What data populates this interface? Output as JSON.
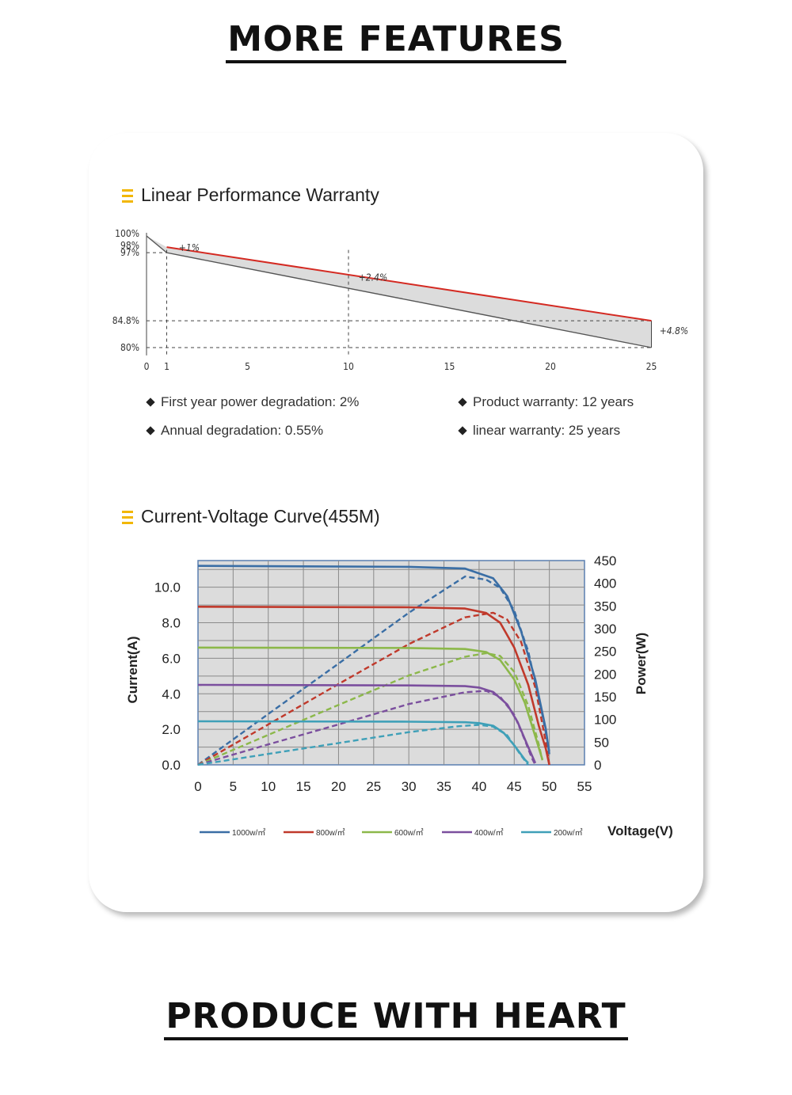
{
  "headings": {
    "top": "MORE FEATURES",
    "bottom": "PRODUCE WITH HEART"
  },
  "warranty": {
    "title": "Linear Performance Warranty",
    "specs": [
      "First year power degradation: 2%",
      "Product warranty: 12 years",
      "Annual degradation: 0.55%",
      "linear warranty: 25 years"
    ]
  },
  "iv": {
    "title": "Current-Voltage Curve(455M)",
    "axis_titles": {
      "left": "Current(A)",
      "right": "Power(W)",
      "bottom": "Voltage(V)"
    }
  },
  "colors": {
    "accent_icon": "#f2b705",
    "warranty_line": "#d42a22",
    "band_fill": "#dcdcdc"
  },
  "chart_data": [
    {
      "type": "line",
      "title": "Linear Performance Warranty",
      "x_ticks": [
        0,
        1,
        5,
        10,
        15,
        20,
        25
      ],
      "y_ticks": [
        {
          "value": 100,
          "label": "100%"
        },
        {
          "value": 98,
          "label": "98%"
        },
        {
          "value": 97,
          "label": "97%"
        },
        {
          "value": 84.8,
          "label": "84.8%"
        },
        {
          "value": 80,
          "label": "80%"
        }
      ],
      "series": [
        {
          "role": "warranty",
          "x": [
            1,
            25
          ],
          "y": [
            98,
            84.8
          ]
        },
        {
          "role": "standard",
          "x": [
            0,
            1,
            25
          ],
          "y": [
            100,
            97,
            80
          ]
        }
      ],
      "annotations": [
        {
          "text": "+1%",
          "x": 1.6,
          "y": 97.3
        },
        {
          "text": "+2.4%",
          "x": 10.5,
          "y": 92.0
        },
        {
          "text": "+4.8%",
          "x": 25.4,
          "y": 82.4
        }
      ],
      "ylim": [
        78.5,
        100.5
      ],
      "grid": false
    },
    {
      "type": "line",
      "title": "Current-Voltage Curve(455M)",
      "xlabel": "Voltage(V)",
      "ylabel": "Current(A)",
      "y2label": "Power(W)",
      "xlim": [
        0,
        55
      ],
      "ylim": [
        0,
        11.5
      ],
      "y2lim": [
        0,
        450
      ],
      "x_ticks": [
        0,
        5,
        10,
        15,
        20,
        25,
        30,
        35,
        40,
        45,
        50,
        55
      ],
      "y_tick_labels": [
        "0.0",
        "2.0",
        "4.0",
        "6.0",
        "8.0",
        "10.0"
      ],
      "y2_ticks": [
        0,
        50,
        100,
        150,
        200,
        250,
        300,
        350,
        400,
        450
      ],
      "grid": true,
      "legend_position": "bottom",
      "series": [
        {
          "name": "1000w/㎡",
          "color": "#3a6ea5",
          "current": {
            "x": [
              0,
              30,
              38,
              42,
              44,
              46,
              48,
              49.5,
              50
            ],
            "y": [
              11.2,
              11.15,
              11.05,
              10.5,
              9.5,
              7.5,
              4.8,
              2.0,
              0.6
            ]
          },
          "power": {
            "x": [
              0,
              10,
              20,
              30,
              38,
              41,
              43,
              45,
              47,
              49,
              50
            ],
            "y": [
              0,
              112,
              223,
              335,
              415,
              408,
              390,
              340,
              250,
              110,
              30
            ]
          }
        },
        {
          "name": "800w/㎡",
          "color": "#c0392b",
          "current": {
            "x": [
              0,
              30,
              38,
              41,
              43,
              45,
              47,
              48.5,
              49.5,
              50
            ],
            "y": [
              8.9,
              8.87,
              8.8,
              8.55,
              8.0,
              6.6,
              4.5,
              2.2,
              0.9,
              0
            ]
          },
          "power": {
            "x": [
              0,
              10,
              20,
              30,
              38,
              42,
              44,
              46,
              48,
              49.5,
              50
            ],
            "y": [
              0,
              89,
              178,
              266,
              325,
              335,
              320,
              270,
              170,
              50,
              0
            ]
          }
        },
        {
          "name": "600w/㎡",
          "color": "#8cb84a",
          "current": {
            "x": [
              0,
              30,
              38,
              41,
              43,
              45,
              46.5,
              48,
              49
            ],
            "y": [
              6.6,
              6.58,
              6.52,
              6.35,
              5.9,
              4.8,
              3.5,
              1.6,
              0.3
            ]
          },
          "power": {
            "x": [
              0,
              10,
              20,
              30,
              38,
              41,
              43,
              45,
              47,
              48.5,
              49
            ],
            "y": [
              0,
              66,
              132,
              197,
              238,
              246,
              240,
              205,
              130,
              45,
              10
            ]
          }
        },
        {
          "name": "400w/㎡",
          "color": "#7b4f9e",
          "current": {
            "x": [
              0,
              30,
              38,
              40,
              42,
              44,
              45.5,
              47,
              48
            ],
            "y": [
              4.5,
              4.47,
              4.43,
              4.35,
              4.1,
              3.4,
              2.4,
              1.0,
              0.1
            ]
          },
          "power": {
            "x": [
              0,
              10,
              20,
              30,
              38,
              41,
              43,
              45,
              46.5,
              47.5,
              48
            ],
            "y": [
              0,
              45,
              89,
              134,
              160,
              163,
              150,
              110,
              55,
              15,
              0
            ]
          }
        },
        {
          "name": "200w/㎡",
          "color": "#3fa0b8",
          "current": {
            "x": [
              0,
              30,
              38,
              40,
              42,
              43.5,
              45,
              46.5,
              47
            ],
            "y": [
              2.45,
              2.43,
              2.4,
              2.35,
              2.2,
              1.8,
              1.1,
              0.3,
              0.1
            ]
          },
          "power": {
            "x": [
              0,
              10,
              20,
              30,
              37,
              40,
              42,
              44,
              46,
              47
            ],
            "y": [
              0,
              24,
              48,
              72,
              85,
              88,
              84,
              65,
              20,
              0
            ]
          }
        }
      ]
    }
  ]
}
